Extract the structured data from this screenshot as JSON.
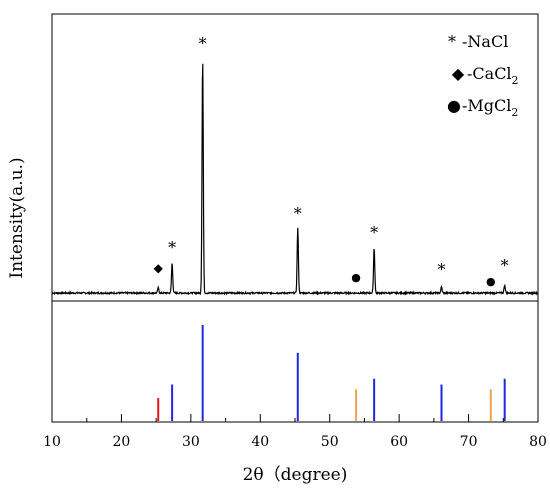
{
  "chart_data": {
    "type": "line",
    "xlabel": "2θ（degree)",
    "ylabel": "Intensity(a.u.)",
    "xlim": [
      10,
      80
    ],
    "x_ticks": [
      "10",
      "20",
      "30",
      "40",
      "50",
      "60",
      "70",
      "80"
    ],
    "grid": false,
    "legend_position": "top-right",
    "legend": [
      {
        "marker": "*",
        "text": "-NaCl",
        "sub": "",
        "phase": "NaCl"
      },
      {
        "marker": "◆",
        "text": "-CaCl",
        "sub": "2",
        "phase": "CaCl2"
      },
      {
        "marker": "●",
        "text": "-MgCl",
        "sub": "2",
        "phase": "MgCl2"
      }
    ],
    "pattern": {
      "baseline": 5,
      "peaks": [
        {
          "x": 25.3,
          "y": 10,
          "phase": "CaCl2"
        },
        {
          "x": 27.3,
          "y": 35,
          "phase": "NaCl"
        },
        {
          "x": 31.7,
          "y": 240,
          "phase": "NaCl"
        },
        {
          "x": 45.4,
          "y": 70,
          "phase": "NaCl"
        },
        {
          "x": 53.8,
          "y": 5,
          "phase": "MgCl2"
        },
        {
          "x": 56.4,
          "y": 50,
          "phase": "NaCl"
        },
        {
          "x": 66.1,
          "y": 11,
          "phase": "NaCl"
        },
        {
          "x": 73.2,
          "y": 5,
          "phase": "MgCl2"
        },
        {
          "x": 75.2,
          "y": 13,
          "phase": "NaCl"
        }
      ]
    },
    "peak_markers": [
      {
        "x": 25.3,
        "y": 25,
        "symbol": "◆"
      },
      {
        "x": 27.3,
        "y": 46,
        "symbol": "*"
      },
      {
        "x": 31.7,
        "y": 250,
        "symbol": "*"
      },
      {
        "x": 45.4,
        "y": 80,
        "symbol": "*"
      },
      {
        "x": 53.8,
        "y": 16,
        "symbol": "●"
      },
      {
        "x": 56.4,
        "y": 61,
        "symbol": "*"
      },
      {
        "x": 66.1,
        "y": 24,
        "symbol": "*"
      },
      {
        "x": 73.2,
        "y": 12,
        "symbol": "●"
      },
      {
        "x": 75.2,
        "y": 28,
        "symbol": "*"
      }
    ],
    "reference_lines": [
      {
        "x": 25.3,
        "intensity": 24,
        "phase": "CaCl2",
        "color": "#e8141b"
      },
      {
        "x": 27.3,
        "intensity": 38,
        "phase": "NaCl",
        "color": "#1b28e0"
      },
      {
        "x": 31.7,
        "intensity": 100,
        "phase": "NaCl",
        "color": "#1b28e0"
      },
      {
        "x": 45.4,
        "intensity": 71,
        "phase": "NaCl",
        "color": "#1b28e0"
      },
      {
        "x": 53.8,
        "intensity": 33,
        "phase": "MgCl2",
        "color": "#f5a04a"
      },
      {
        "x": 56.4,
        "intensity": 44,
        "phase": "NaCl",
        "color": "#1b28e0"
      },
      {
        "x": 66.1,
        "intensity": 38,
        "phase": "NaCl",
        "color": "#1b28e0"
      },
      {
        "x": 73.2,
        "intensity": 33,
        "phase": "MgCl2",
        "color": "#f5a04a"
      },
      {
        "x": 75.2,
        "intensity": 44,
        "phase": "NaCl",
        "color": "#1b28e0"
      }
    ],
    "colors": {
      "pattern": "#000000",
      "NaCl": "#1b28e0",
      "CaCl2": "#e8141b",
      "MgCl2": "#f5a04a"
    }
  }
}
